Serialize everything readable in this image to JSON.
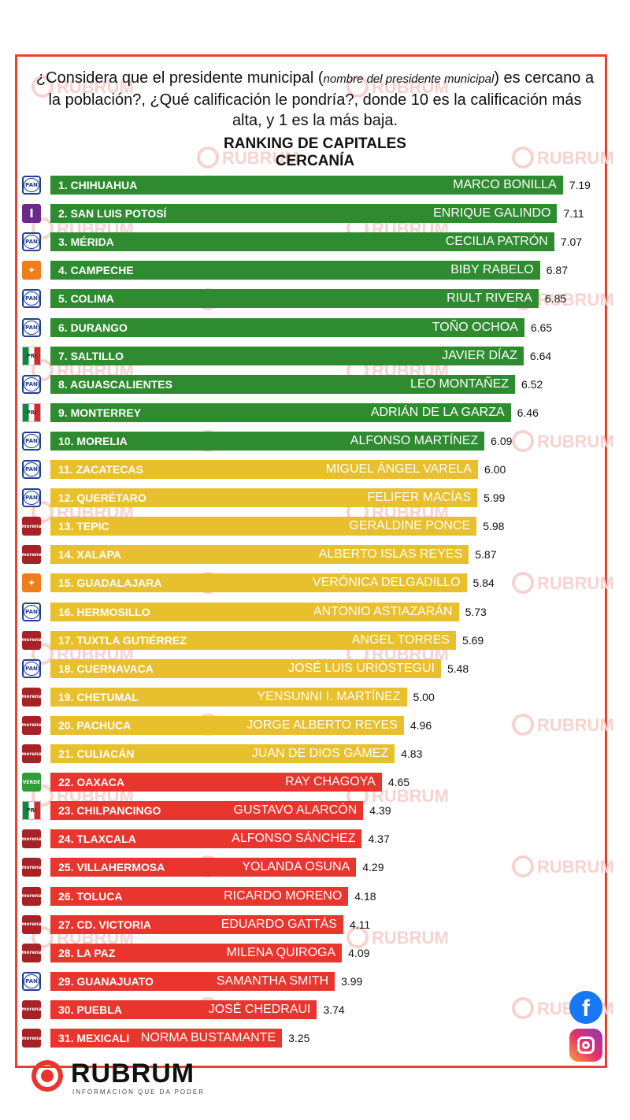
{
  "question": {
    "part1": "¿Considera que el presidente municipal (",
    "italic": "nombre del presidente municipal",
    "part2": ") es cercano a la población?, ¿Qué calificación le pondría?, donde 10 es la calificación más alta, y 1 es la más baja."
  },
  "watermark": "RUBRUM",
  "brand": {
    "name": "RUBRUM",
    "tagline": "INFORMACIÓN QUE DA PODER"
  },
  "social": {
    "facebook": "f"
  },
  "colors": {
    "green": "#2e8b2f",
    "yellow": "#e8bf2c",
    "red": "#e8352e"
  },
  "chart_data": {
    "type": "bar",
    "orientation": "horizontal",
    "title": "RANKING DE CAPITALES",
    "subtitle": "CERCANÍA",
    "xlim": [
      0,
      10
    ],
    "rows": [
      {
        "city": "1. CHIHUAHUA",
        "mayor": "MARCO BONILLA",
        "value": 7.19,
        "value_label": "7.19",
        "party": "PAN",
        "tier": "green"
      },
      {
        "city": "2. SAN LUIS POTOSÍ",
        "mayor": "ENRIQUE GALINDO",
        "value": 7.11,
        "value_label": "7.11",
        "party": "I",
        "tier": "green"
      },
      {
        "city": "3. MÉRIDA",
        "mayor": "CECILIA PATRÓN",
        "value": 7.07,
        "value_label": "7.07",
        "party": "PAN",
        "tier": "green"
      },
      {
        "city": "4. CAMPECHE",
        "mayor": "BIBY RABELO",
        "value": 6.87,
        "value_label": "6.87",
        "party": "MC",
        "tier": "green"
      },
      {
        "city": "5. COLIMA",
        "mayor": "RIULT RIVERA",
        "value": 6.85,
        "value_label": "6.85",
        "party": "PAN",
        "tier": "green"
      },
      {
        "city": "6. DURANGO",
        "mayor": "TOÑO OCHOA",
        "value": 6.65,
        "value_label": "6.65",
        "party": "PAN",
        "tier": "green"
      },
      {
        "city": "7. SALTILLO",
        "mayor": "JAVIER DÍAZ",
        "value": 6.64,
        "value_label": "6.64",
        "party": "PRI",
        "tier": "green"
      },
      {
        "city": "8. AGUASCALIENTES",
        "mayor": "LEO MONTAÑEZ",
        "value": 6.52,
        "value_label": "6.52",
        "party": "PAN",
        "tier": "green"
      },
      {
        "city": "9. MONTERREY",
        "mayor": "ADRIÁN DE LA GARZA",
        "value": 6.46,
        "value_label": "6.46",
        "party": "PRI",
        "tier": "green"
      },
      {
        "city": "10. MORELIA",
        "mayor": "ALFONSO MARTÍNEZ",
        "value": 6.09,
        "value_label": "6.09",
        "party": "PAN",
        "tier": "green"
      },
      {
        "city": "11. ZACATECAS",
        "mayor": "MIGUEL ÁNGEL VARELA",
        "value": 6.0,
        "value_label": "6.00",
        "party": "PAN",
        "tier": "yellow"
      },
      {
        "city": "12. QUERÉTARO",
        "mayor": "FELIFER MACÍAS",
        "value": 5.99,
        "value_label": "5.99",
        "party": "PAN",
        "tier": "yellow"
      },
      {
        "city": "13. TEPIC",
        "mayor": "GERALDINE PONCE",
        "value": 5.98,
        "value_label": "5.98",
        "party": "MORENA",
        "tier": "yellow"
      },
      {
        "city": "14. XALAPA",
        "mayor": "ALBERTO ISLAS REYES",
        "value": 5.87,
        "value_label": "5.87",
        "party": "MORENA",
        "tier": "yellow"
      },
      {
        "city": "15. GUADALAJARA",
        "mayor": "VERÓNICA DELGADILLO",
        "value": 5.84,
        "value_label": "5.84",
        "party": "MC",
        "tier": "yellow"
      },
      {
        "city": "16. HERMOSILLO",
        "mayor": "ANTONIO ASTIAZARÁN",
        "value": 5.73,
        "value_label": "5.73",
        "party": "PAN",
        "tier": "yellow"
      },
      {
        "city": "17. TUXTLA GUTIÉRREZ",
        "mayor": "ANGEL TORRES",
        "value": 5.69,
        "value_label": "5.69",
        "party": "MORENA",
        "tier": "yellow"
      },
      {
        "city": "18. CUERNAVACA",
        "mayor": "JOSÉ LUIS URIÓSTEGUI",
        "value": 5.48,
        "value_label": "5.48",
        "party": "PAN",
        "tier": "yellow"
      },
      {
        "city": "19. CHETUMAL",
        "mayor": "YENSUNNI I. MARTÍNEZ",
        "value": 5.0,
        "value_label": "5.00",
        "party": "MORENA",
        "tier": "yellow"
      },
      {
        "city": "20. PACHUCA",
        "mayor": "JORGE ALBERTO REYES",
        "value": 4.96,
        "value_label": "4.96",
        "party": "MORENA",
        "tier": "yellow"
      },
      {
        "city": "21. CULIACÁN",
        "mayor": "JUAN DE DIOS GÁMEZ",
        "value": 4.83,
        "value_label": "4.83",
        "party": "MORENA",
        "tier": "yellow"
      },
      {
        "city": "22. OAXACA",
        "mayor": "RAY CHAGOYA",
        "value": 4.65,
        "value_label": "4.65",
        "party": "VERDE",
        "tier": "red"
      },
      {
        "city": "23. CHILPANCINGO",
        "mayor": "GUSTAVO ALARCÓN",
        "value": 4.39,
        "value_label": "4.39",
        "party": "PRI",
        "tier": "red"
      },
      {
        "city": "24. TLAXCALA",
        "mayor": "ALFONSO SÁNCHEZ",
        "value": 4.37,
        "value_label": "4.37",
        "party": "MORENA",
        "tier": "red"
      },
      {
        "city": "25. VILLAHERMOSA",
        "mayor": "YOLANDA OSUNA",
        "value": 4.29,
        "value_label": "4.29",
        "party": "MORENA",
        "tier": "red"
      },
      {
        "city": "26. TOLUCA",
        "mayor": "RICARDO MORENO",
        "value": 4.18,
        "value_label": "4.18",
        "party": "MORENA",
        "tier": "red"
      },
      {
        "city": "27. CD. VICTORIA",
        "mayor": "EDUARDO GATTÁS",
        "value": 4.11,
        "value_label": "4.11",
        "party": "MORENA",
        "tier": "red"
      },
      {
        "city": "28. LA PAZ",
        "mayor": "MILENA QUIROGA",
        "value": 4.09,
        "value_label": "4.09",
        "party": "MORENA",
        "tier": "red"
      },
      {
        "city": "29. GUANAJUATO",
        "mayor": "SAMANTHA SMITH",
        "value": 3.99,
        "value_label": "3.99",
        "party": "PAN",
        "tier": "red"
      },
      {
        "city": "30. PUEBLA",
        "mayor": "JOSÉ CHEDRAUI",
        "value": 3.74,
        "value_label": "3.74",
        "party": "MORENA",
        "tier": "red"
      },
      {
        "city": "31. MEXICALI",
        "mayor": "NORMA BUSTAMANTE",
        "value": 3.25,
        "value_label": "3.25",
        "party": "MORENA",
        "tier": "red"
      }
    ]
  }
}
